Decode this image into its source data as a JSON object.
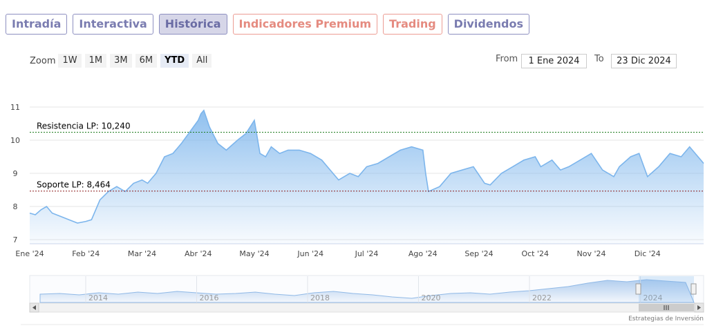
{
  "tabs": [
    {
      "label": "Intradía",
      "style": "blue",
      "active": false
    },
    {
      "label": "Interactiva",
      "style": "blue",
      "active": false
    },
    {
      "label": "Histórica",
      "style": "blue",
      "active": true
    },
    {
      "label": "Indicadores Premium",
      "style": "red",
      "active": false
    },
    {
      "label": "Trading",
      "style": "red",
      "active": false
    },
    {
      "label": "Dividendos",
      "style": "blue",
      "active": false
    }
  ],
  "zoom": {
    "label": "Zoom",
    "buttons": [
      {
        "label": "1W",
        "active": false
      },
      {
        "label": "1M",
        "active": false
      },
      {
        "label": "3M",
        "active": false
      },
      {
        "label": "6M",
        "active": false
      },
      {
        "label": "YTD",
        "active": true
      },
      {
        "label": "All",
        "active": false
      }
    ]
  },
  "range": {
    "from_label": "From",
    "from_value": "1 Ene 2024",
    "to_label": "To",
    "to_value": "23 Dic 2024"
  },
  "credit": "Estrategias de Inversión",
  "colors": {
    "line": "#7cb5ec",
    "resistance": "#1a7a1a",
    "support": "#8b1a1a",
    "navigator": "#c7daf2"
  },
  "chart_data": {
    "type": "area",
    "ylim": [
      7,
      11
    ],
    "yticks": [
      7,
      8,
      9,
      10,
      11
    ],
    "xlabels": [
      "Ene '24",
      "Feb '24",
      "Mar '24",
      "Abr '24",
      "May '24",
      "Jun '24",
      "Jul '24",
      "Ago '24",
      "Sep '24",
      "Oct '24",
      "Nov '24",
      "Dic '24"
    ],
    "resistance": {
      "label": "Resistencia LP: 10,240",
      "value": 10.24
    },
    "support": {
      "label": "Soporte LP: 8,464",
      "value": 8.464
    },
    "series": [
      {
        "x": [
          0,
          0.1,
          0.2,
          0.3,
          0.4,
          0.55,
          0.7,
          0.85,
          1,
          1.1,
          1.25,
          1.4,
          1.55,
          1.7,
          1.85,
          2,
          2.1,
          2.25,
          2.4,
          2.55,
          2.7,
          2.85,
          3,
          3.05,
          3.1,
          3.2,
          3.35,
          3.5,
          3.7,
          3.85,
          4,
          4.1,
          4.2,
          4.3,
          4.45,
          4.6,
          4.8,
          5,
          5.2,
          5.3,
          5.5,
          5.7,
          5.85,
          6,
          6.2,
          6.4,
          6.6,
          6.8,
          7,
          7.05,
          7.1,
          7.3,
          7.5,
          7.7,
          7.9,
          8.1,
          8.2,
          8.4,
          8.6,
          8.8,
          9,
          9.1,
          9.3,
          9.45,
          9.6,
          9.8,
          10,
          10.2,
          10.4,
          10.5,
          10.7,
          10.85,
          11,
          11.2,
          11.4,
          11.6,
          11.75,
          12
        ],
        "y": [
          7.8,
          7.75,
          7.9,
          8.0,
          7.8,
          7.7,
          7.6,
          7.5,
          7.55,
          7.6,
          8.2,
          8.45,
          8.6,
          8.45,
          8.7,
          8.8,
          8.7,
          9.0,
          9.5,
          9.6,
          9.9,
          10.25,
          10.6,
          10.8,
          10.9,
          10.4,
          9.9,
          9.7,
          10.0,
          10.2,
          10.6,
          9.6,
          9.5,
          9.8,
          9.6,
          9.7,
          9.7,
          9.6,
          9.4,
          9.2,
          8.8,
          9.0,
          8.9,
          9.2,
          9.3,
          9.5,
          9.7,
          9.8,
          9.7,
          9.0,
          8.45,
          8.6,
          9.0,
          9.1,
          9.2,
          8.7,
          8.65,
          9.0,
          9.2,
          9.4,
          9.5,
          9.2,
          9.4,
          9.1,
          9.2,
          9.4,
          9.6,
          9.1,
          8.9,
          9.2,
          9.5,
          9.6,
          8.9,
          9.2,
          9.6,
          9.5,
          9.8,
          9.3
        ]
      }
    ],
    "navigator": {
      "labels": [
        "2014",
        "2016",
        "2018",
        "2020",
        "2022",
        "2024"
      ]
    }
  }
}
